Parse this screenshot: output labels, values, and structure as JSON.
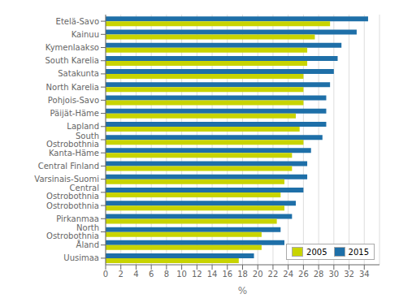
{
  "chart_data": {
    "type": "bar",
    "orientation": "horizontal",
    "categories": [
      "Etelä-Savo",
      "Kainuu",
      "Kymenlaakso",
      "South Karelia",
      "Satakunta",
      "North Karelia",
      "Pohjois-Savo",
      "Päijät-Häme",
      "Lapland",
      "South Ostrobothnia",
      "Kanta-Häme",
      "Central Finland",
      "Varsinais-Suomi",
      "Central Ostrobothnia",
      "Ostrobothnia",
      "Pirkanmaa",
      "North Ostrobothnia",
      "Åland",
      "Uusimaa"
    ],
    "series": [
      {
        "name": "2005",
        "color": "#c8d400",
        "values": [
          29.5,
          27.5,
          26.5,
          26.5,
          26.0,
          26.0,
          26.0,
          25.0,
          25.5,
          26.0,
          24.5,
          24.5,
          23.5,
          23.0,
          23.5,
          22.5,
          20.5,
          20.5,
          17.5
        ]
      },
      {
        "name": "2015",
        "color": "#1e6fa8",
        "values": [
          34.5,
          33.0,
          31.0,
          30.5,
          30.0,
          29.5,
          29.0,
          29.0,
          29.0,
          28.5,
          27.0,
          26.5,
          26.5,
          26.0,
          25.0,
          24.5,
          23.0,
          23.5,
          19.5
        ]
      }
    ],
    "xlabel": "%",
    "xlim": [
      0,
      36
    ],
    "xticks": [
      0,
      2,
      4,
      6,
      8,
      10,
      12,
      14,
      16,
      18,
      20,
      22,
      24,
      26,
      28,
      30,
      32,
      34
    ],
    "grid": true,
    "legend": "lower right"
  }
}
